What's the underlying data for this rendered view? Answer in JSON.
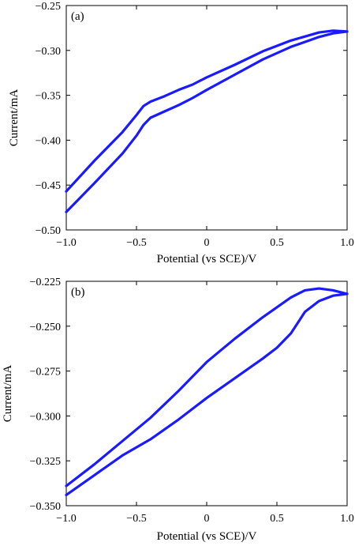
{
  "chart_data": [
    {
      "type": "line",
      "panel_label": "(a)",
      "xlabel": "Potential (vs SCE)/V",
      "ylabel": "Current/mA",
      "xlim": [
        -1.0,
        1.0
      ],
      "ylim": [
        -0.5,
        -0.25
      ],
      "xticks": [
        -1.0,
        -0.5,
        0,
        0.5,
        1.0
      ],
      "xtick_labels": [
        "−1.0",
        "−0.5",
        "0",
        "0.5",
        "1.0"
      ],
      "yticks": [
        -0.25,
        -0.3,
        -0.35,
        -0.4,
        -0.45,
        -0.5
      ],
      "ytick_labels": [
        "−0.25",
        "−0.30",
        "−0.35",
        "−0.40",
        "−0.45",
        "−0.50"
      ],
      "grid": false,
      "color": "#1a1aff",
      "series": [
        {
          "x": [
            -1.0,
            -0.8,
            -0.6,
            -0.5,
            -0.45,
            -0.4,
            -0.3,
            -0.2,
            -0.1,
            0.0,
            0.2,
            0.4,
            0.6,
            0.8,
            0.9,
            1.0
          ],
          "y": [
            -0.48,
            -0.448,
            -0.415,
            -0.395,
            -0.383,
            -0.375,
            -0.368,
            -0.361,
            -0.353,
            -0.344,
            -0.327,
            -0.31,
            -0.296,
            -0.285,
            -0.281,
            -0.279
          ]
        },
        {
          "x": [
            -1.0,
            -0.8,
            -0.6,
            -0.5,
            -0.45,
            -0.4,
            -0.3,
            -0.2,
            -0.1,
            0.0,
            0.2,
            0.4,
            0.6,
            0.8,
            0.9,
            1.0
          ],
          "y": [
            -0.457,
            -0.423,
            -0.391,
            -0.372,
            -0.362,
            -0.357,
            -0.351,
            -0.344,
            -0.338,
            -0.33,
            -0.316,
            -0.301,
            -0.289,
            -0.28,
            -0.278,
            -0.279
          ]
        }
      ]
    },
    {
      "type": "line",
      "panel_label": "(b)",
      "xlabel": "Potential (vs SCE)/V",
      "ylabel": "Current/mA",
      "xlim": [
        -1.0,
        1.0
      ],
      "ylim": [
        -0.35,
        -0.225
      ],
      "xticks": [
        -1.0,
        -0.5,
        0,
        0.5,
        1.0
      ],
      "xtick_labels": [
        "−1.0",
        "−0.5",
        "0",
        "0.5",
        "1.0"
      ],
      "yticks": [
        -0.225,
        -0.25,
        -0.275,
        -0.3,
        -0.325,
        -0.35
      ],
      "ytick_labels": [
        "−0.225",
        "−0.250",
        "−0.275",
        "−0.300",
        "−0.325",
        "−0.350"
      ],
      "grid": false,
      "color": "#1a1aff",
      "series": [
        {
          "x": [
            -1.0,
            -0.8,
            -0.6,
            -0.4,
            -0.2,
            0.0,
            0.2,
            0.4,
            0.5,
            0.6,
            0.7,
            0.8,
            0.9,
            1.0
          ],
          "y": [
            -0.344,
            -0.333,
            -0.322,
            -0.313,
            -0.302,
            -0.29,
            -0.279,
            -0.268,
            -0.262,
            -0.254,
            -0.242,
            -0.236,
            -0.233,
            -0.232
          ]
        },
        {
          "x": [
            -1.0,
            -0.8,
            -0.6,
            -0.4,
            -0.2,
            0.0,
            0.2,
            0.4,
            0.6,
            0.7,
            0.8,
            0.9,
            1.0
          ],
          "y": [
            -0.339,
            -0.327,
            -0.314,
            -0.301,
            -0.286,
            -0.27,
            -0.257,
            -0.245,
            -0.234,
            -0.23,
            -0.229,
            -0.23,
            -0.232
          ]
        }
      ]
    }
  ]
}
